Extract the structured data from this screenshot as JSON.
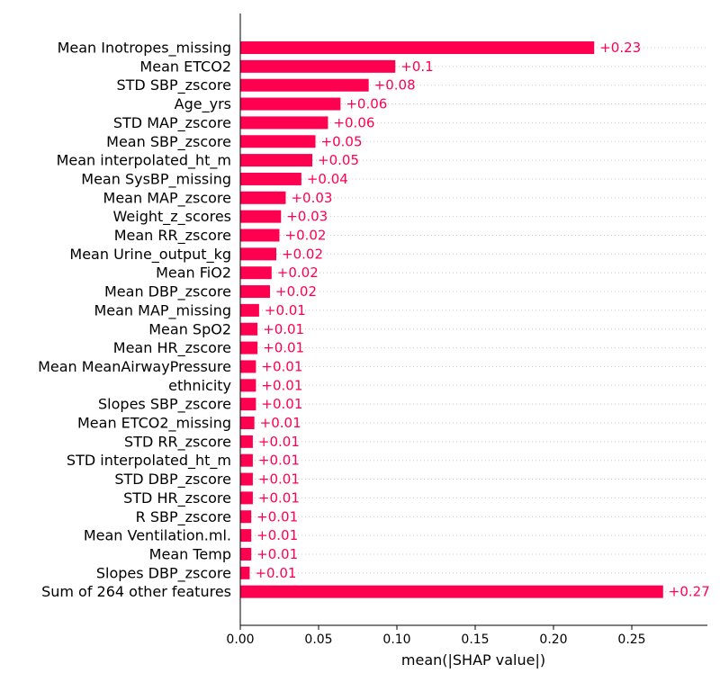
{
  "chart_data": {
    "type": "bar",
    "orientation": "horizontal",
    "xlabel": "mean(|SHAP value|)",
    "xlim": [
      0,
      0.295
    ],
    "xticks": [
      "0.00",
      "0.05",
      "0.10",
      "0.15",
      "0.20",
      "0.25"
    ],
    "bar_color": "#ff0051",
    "grid": "horizontal dotted lines per row",
    "categories": [
      "Mean Inotropes_missing",
      "Mean ETCO2",
      "STD SBP_zscore",
      "Age_yrs",
      "STD MAP_zscore",
      "Mean SBP_zscore",
      "Mean interpolated_ht_m",
      "Mean SysBP_missing",
      "Mean MAP_zscore",
      "Weight_z_scores",
      "Mean RR_zscore",
      "Mean Urine_output_kg",
      "Mean FiO2",
      "Mean DBP_zscore",
      "Mean MAP_missing",
      "Mean SpO2",
      "Mean HR_zscore",
      "Mean MeanAirwayPressure",
      "ethnicity",
      "Slopes SBP_zscore",
      "Mean ETCO2_missing",
      "STD RR_zscore",
      "STD interpolated_ht_m",
      "STD DBP_zscore",
      "STD HR_zscore",
      "R SBP_zscore",
      "Mean Ventilation.ml.",
      "Mean Temp",
      "Slopes DBP_zscore",
      "Sum of 264 other features"
    ],
    "values": [
      0.226,
      0.099,
      0.082,
      0.064,
      0.056,
      0.048,
      0.046,
      0.039,
      0.029,
      0.026,
      0.025,
      0.023,
      0.02,
      0.019,
      0.012,
      0.011,
      0.011,
      0.01,
      0.01,
      0.01,
      0.009,
      0.008,
      0.008,
      0.008,
      0.008,
      0.007,
      0.007,
      0.007,
      0.006,
      0.27
    ],
    "value_labels": [
      "+0.23",
      "+0.1",
      "+0.08",
      "+0.06",
      "+0.06",
      "+0.05",
      "+0.05",
      "+0.04",
      "+0.03",
      "+0.03",
      "+0.02",
      "+0.02",
      "+0.02",
      "+0.02",
      "+0.01",
      "+0.01",
      "+0.01",
      "+0.01",
      "+0.01",
      "+0.01",
      "+0.01",
      "+0.01",
      "+0.01",
      "+0.01",
      "+0.01",
      "+0.01",
      "+0.01",
      "+0.01",
      "+0.01",
      "+0.27"
    ]
  }
}
